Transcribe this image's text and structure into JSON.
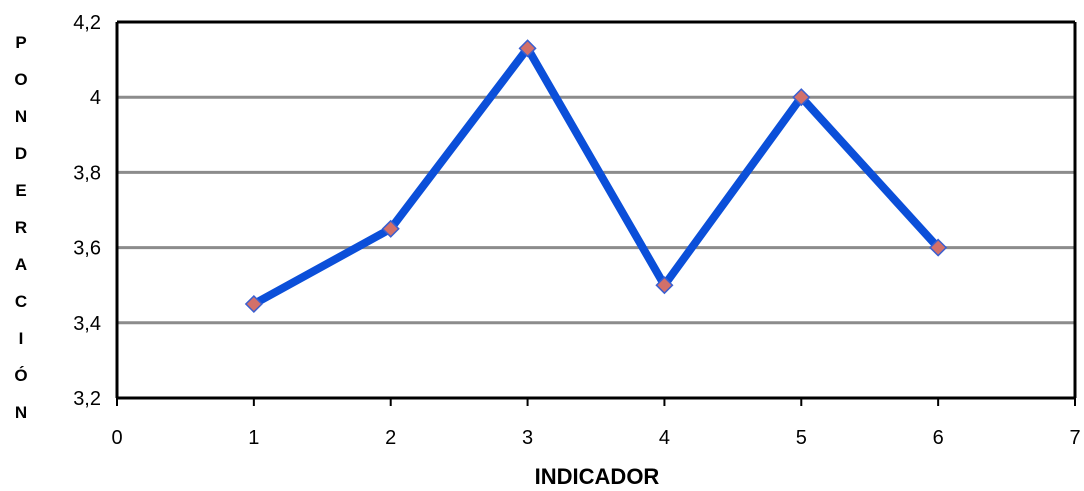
{
  "chart_data": {
    "type": "scatter",
    "title": "",
    "xlabel": "INDICADOR",
    "ylabel": "PONDERACIÓN",
    "xlim": [
      0,
      7
    ],
    "ylim": [
      3.2,
      4.2
    ],
    "xticks": [
      "0",
      "1",
      "2",
      "3",
      "4",
      "5",
      "6",
      "7"
    ],
    "yticks": [
      "3,2",
      "3,4",
      "3,6",
      "3,8",
      "4",
      "4,2"
    ],
    "grid": "horizontal",
    "legend": "none",
    "series": [
      {
        "x": [
          1,
          2,
          3,
          4,
          5,
          6
        ],
        "values": [
          3.45,
          3.65,
          4.13,
          3.5,
          4.0,
          3.6
        ],
        "line_color": "#0b4fd9",
        "marker": "diamond",
        "marker_color": "#d2706a"
      }
    ]
  }
}
